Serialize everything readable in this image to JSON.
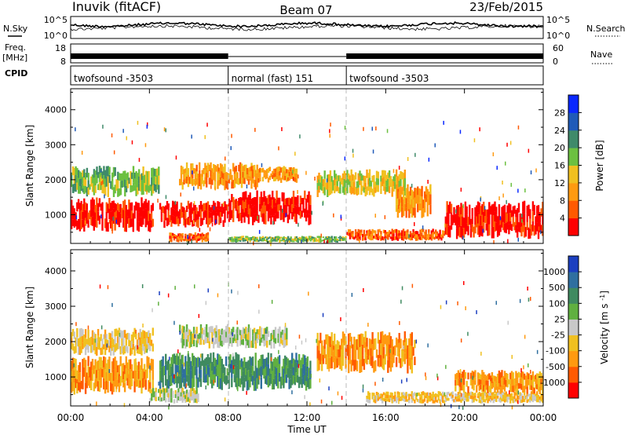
{
  "header": {
    "station": "Inuvik (fitACF)",
    "beam": "Beam 07",
    "date": "23/Feb/2015"
  },
  "panel_labels": {
    "nsky": "N.Sky",
    "freq": "Freq.",
    "freq_unit": "[MHz]",
    "cpid": "CPID",
    "nsearch": "N.Search",
    "nave": "Nave"
  },
  "noise_ticks": {
    "top": "10^5",
    "bottom": "10^0"
  },
  "freq_ticks": {
    "top": "18",
    "bottom": "8"
  },
  "nave_ticks": {
    "top": "60",
    "bottom": "0"
  },
  "cpid_segments": [
    {
      "label": "twofsound -3503",
      "start_hour": 0,
      "end_hour": 8
    },
    {
      "label": "normal (fast) 151",
      "start_hour": 8,
      "end_hour": 14
    },
    {
      "label": "twofsound -3503",
      "start_hour": 14,
      "end_hour": 24
    }
  ],
  "chart_data": [
    {
      "type": "heatmap",
      "panel": "power",
      "xlabel": "Time UT",
      "ylabel": "Slant Range [km]",
      "x_ticks": [
        "00:00",
        "04:00",
        "08:00",
        "12:00",
        "16:00",
        "20:00",
        "00:00"
      ],
      "xlim_hours": [
        0,
        24
      ],
      "ylim": [
        180,
        4600
      ],
      "y_ticks": [
        1000,
        2000,
        3000,
        4000
      ],
      "colorbar": {
        "label": "Power [dB]",
        "ticks": [
          "4",
          "8",
          "12",
          "16",
          "20",
          "24",
          "28"
        ],
        "colors": [
          "#0a28ff",
          "#1f5ab8",
          "#3f8a6a",
          "#6cc040",
          "#f0c020",
          "#ff9a10",
          "#ff5a00",
          "#ff0000"
        ]
      },
      "regions": [
        {
          "t0": 0.0,
          "t1": 4.2,
          "r0": 500,
          "r1": 1500,
          "level": 7
        },
        {
          "t0": 0.0,
          "t1": 4.5,
          "r0": 1500,
          "r1": 2400,
          "level": 3
        },
        {
          "t0": 4.5,
          "t1": 8.0,
          "r0": 600,
          "r1": 1400,
          "level": 7
        },
        {
          "t0": 5.5,
          "t1": 9.5,
          "r0": 1700,
          "r1": 2500,
          "level": 5
        },
        {
          "t0": 8.0,
          "t1": 12.2,
          "r0": 700,
          "r1": 1700,
          "level": 7
        },
        {
          "t0": 9.0,
          "t1": 11.5,
          "r0": 1900,
          "r1": 2400,
          "level": 5
        },
        {
          "t0": 12.5,
          "t1": 17.0,
          "r0": 1500,
          "r1": 2300,
          "level": 4
        },
        {
          "t0": 16.5,
          "t1": 18.3,
          "r0": 900,
          "r1": 1900,
          "level": 5
        },
        {
          "t0": 14.0,
          "t1": 19.0,
          "r0": 250,
          "r1": 600,
          "level": 6
        },
        {
          "t0": 19.0,
          "t1": 24.0,
          "r0": 300,
          "r1": 1400,
          "level": 7
        },
        {
          "t0": 5.0,
          "t1": 7.0,
          "r0": 200,
          "r1": 500,
          "level": 6
        },
        {
          "t0": 8.0,
          "t1": 14.0,
          "r0": 200,
          "r1": 400,
          "level": 3
        }
      ]
    },
    {
      "type": "heatmap",
      "panel": "velocity",
      "xlabel": "Time UT",
      "ylabel": "Slant Range [km]",
      "x_ticks": [
        "00:00",
        "04:00",
        "08:00",
        "12:00",
        "16:00",
        "20:00",
        "00:00"
      ],
      "xlim_hours": [
        0,
        24
      ],
      "ylim": [
        180,
        4600
      ],
      "y_ticks": [
        1000,
        2000,
        3000,
        4000
      ],
      "colorbar": {
        "label": "Velocity [m s^-1]",
        "ticks": [
          "1000",
          "500",
          "100",
          "25",
          "-25",
          "-100",
          "-500",
          "-1000"
        ],
        "colors": [
          "#1c3fc0",
          "#2f6fa0",
          "#3f8a60",
          "#60b040",
          "#c8c8c8",
          "#f0c020",
          "#ff9a10",
          "#ff5a00",
          "#ff0000"
        ]
      },
      "regions": [
        {
          "t0": 0.0,
          "t1": 4.2,
          "r0": 500,
          "r1": 1600,
          "level": 6
        },
        {
          "t0": 0.0,
          "t1": 4.2,
          "r0": 1600,
          "r1": 2400,
          "level": 5
        },
        {
          "t0": 4.5,
          "t1": 12.2,
          "r0": 600,
          "r1": 1700,
          "level": 2
        },
        {
          "t0": 5.5,
          "t1": 11.0,
          "r0": 1800,
          "r1": 2500,
          "level": 4
        },
        {
          "t0": 4.0,
          "t1": 6.5,
          "r0": 250,
          "r1": 700,
          "level": 4
        },
        {
          "t0": 12.5,
          "t1": 17.5,
          "r0": 1100,
          "r1": 2300,
          "level": 6
        },
        {
          "t0": 15.0,
          "t1": 24.0,
          "r0": 250,
          "r1": 600,
          "level": 5
        },
        {
          "t0": 19.5,
          "t1": 24.0,
          "r0": 500,
          "r1": 1200,
          "level": 6
        }
      ]
    }
  ]
}
